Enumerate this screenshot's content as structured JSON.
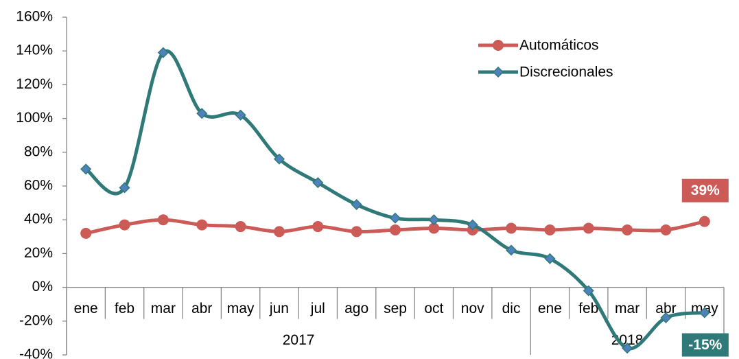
{
  "chart_data": {
    "type": "line",
    "category_groups": [
      {
        "label": "2017",
        "categories": [
          "ene",
          "feb",
          "mar",
          "abr",
          "may",
          "jun",
          "jul",
          "ago",
          "sep",
          "oct",
          "nov",
          "dic"
        ]
      },
      {
        "label": "2018",
        "categories": [
          "ene",
          "feb",
          "mar",
          "abr",
          "may"
        ]
      }
    ],
    "series": [
      {
        "name": "Automáticos",
        "color": "#cc5a57",
        "marker": "circle",
        "values": [
          32,
          37,
          40,
          37,
          36,
          33,
          36,
          33,
          34,
          35,
          34,
          35,
          34,
          35,
          34,
          34,
          39
        ],
        "value_labels": [
          null,
          null,
          null,
          null,
          null,
          null,
          null,
          null,
          null,
          null,
          null,
          null,
          null,
          null,
          null,
          null,
          "39%"
        ]
      },
      {
        "name": "Discrecionales",
        "color": "#2f7a78",
        "marker": "diamond",
        "values": [
          70,
          59,
          139,
          103,
          102,
          76,
          62,
          49,
          41,
          40,
          37,
          22,
          17,
          -2,
          -36,
          -18,
          -15
        ],
        "value_labels": [
          null,
          null,
          null,
          null,
          null,
          null,
          null,
          null,
          null,
          null,
          null,
          null,
          null,
          null,
          null,
          null,
          "-15%"
        ]
      }
    ],
    "ylim": [
      -40,
      160
    ],
    "yticks": [
      {
        "value": -40,
        "label": "-40%"
      },
      {
        "value": -20,
        "label": "-20%"
      },
      {
        "value": 0,
        "label": "0%"
      },
      {
        "value": 20,
        "label": "20%"
      },
      {
        "value": 40,
        "label": "40%"
      },
      {
        "value": 60,
        "label": "60%"
      },
      {
        "value": 80,
        "label": "80%"
      },
      {
        "value": 100,
        "label": "100%"
      },
      {
        "value": 120,
        "label": "120%"
      },
      {
        "value": 140,
        "label": "140%"
      },
      {
        "value": 160,
        "label": "160%"
      }
    ],
    "legend": "top-right",
    "smooth": true
  }
}
